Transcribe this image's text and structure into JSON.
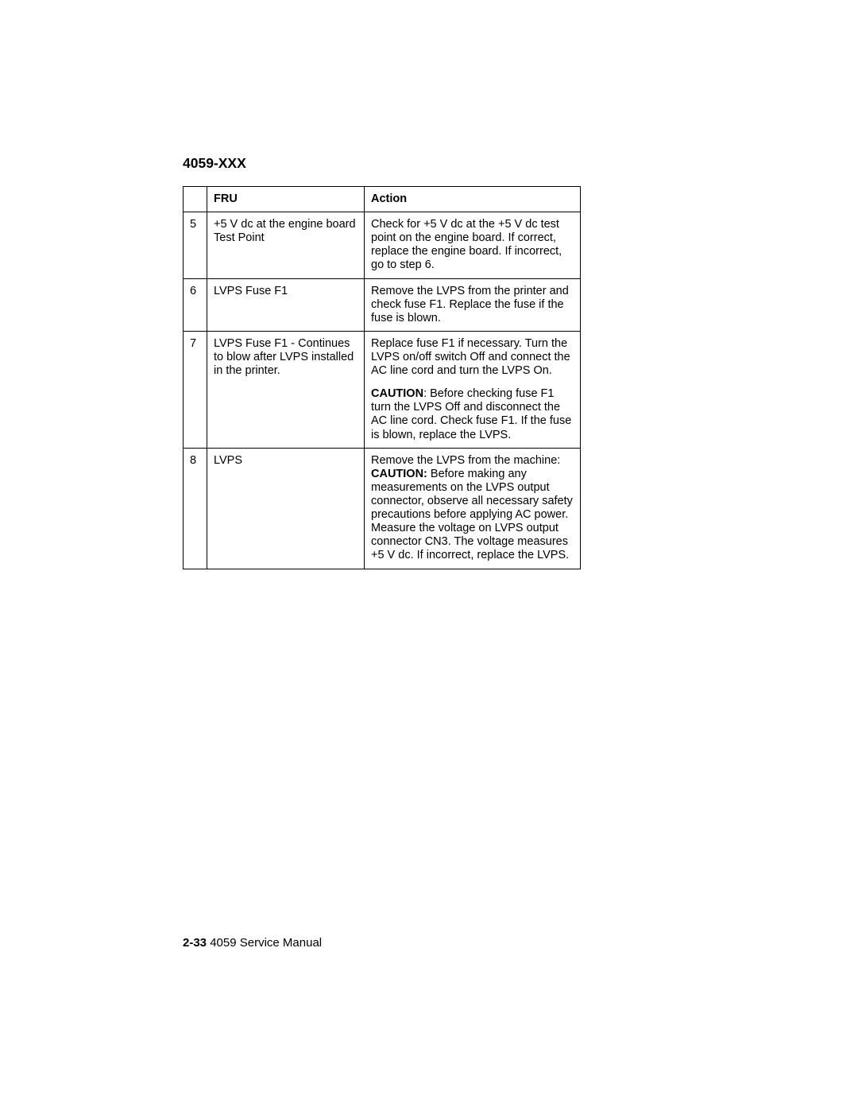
{
  "header": {
    "model": "4059-XXX"
  },
  "table": {
    "head": {
      "col_fru": "FRU",
      "col_action": "Action"
    },
    "rows": {
      "r5": {
        "num": "5",
        "fru": "+5 V dc at the engine board Test Point",
        "action": "Check for +5 V dc at the +5 V dc test point on the engine board. If correct, replace the engine board. If incorrect, go to step 6."
      },
      "r6": {
        "num": "6",
        "fru": "LVPS Fuse F1",
        "action": "Remove the LVPS from the printer and check fuse F1. Replace the fuse if the fuse is blown."
      },
      "r7": {
        "num": "7",
        "fru": "LVPS Fuse F1 - Continues to blow after LVPS installed in the printer.",
        "action_p1": "Replace fuse F1 if necessary. Turn the LVPS on/off switch Off and connect the AC line cord and turn the LVPS On.",
        "caution_label": "CAUTION",
        "action_p2": ": Before checking fuse F1 turn the LVPS Off and disconnect the AC line cord. Check fuse F1. If the fuse is blown, replace the LVPS."
      },
      "r8": {
        "num": "8",
        "fru": "LVPS",
        "action_pre": "Remove the LVPS from the machine:",
        "caution_label": "CAUTION:",
        "action_post": " Before making any measurements on the LVPS output connector, observe all necessary safety precautions before applying AC power. Measure the voltage on LVPS output connector CN3. The voltage measures +5 V dc. If incorrect, replace the LVPS."
      }
    }
  },
  "footer": {
    "page_num": "2-33",
    "doc_title": "  4059 Service Manual"
  },
  "colors": {
    "text": "#000000",
    "background": "#ffffff",
    "border": "#000000"
  },
  "typography": {
    "body_font_size_pt": 11,
    "header_font_size_pt": 13,
    "font_family": "Arial/Helvetica"
  }
}
